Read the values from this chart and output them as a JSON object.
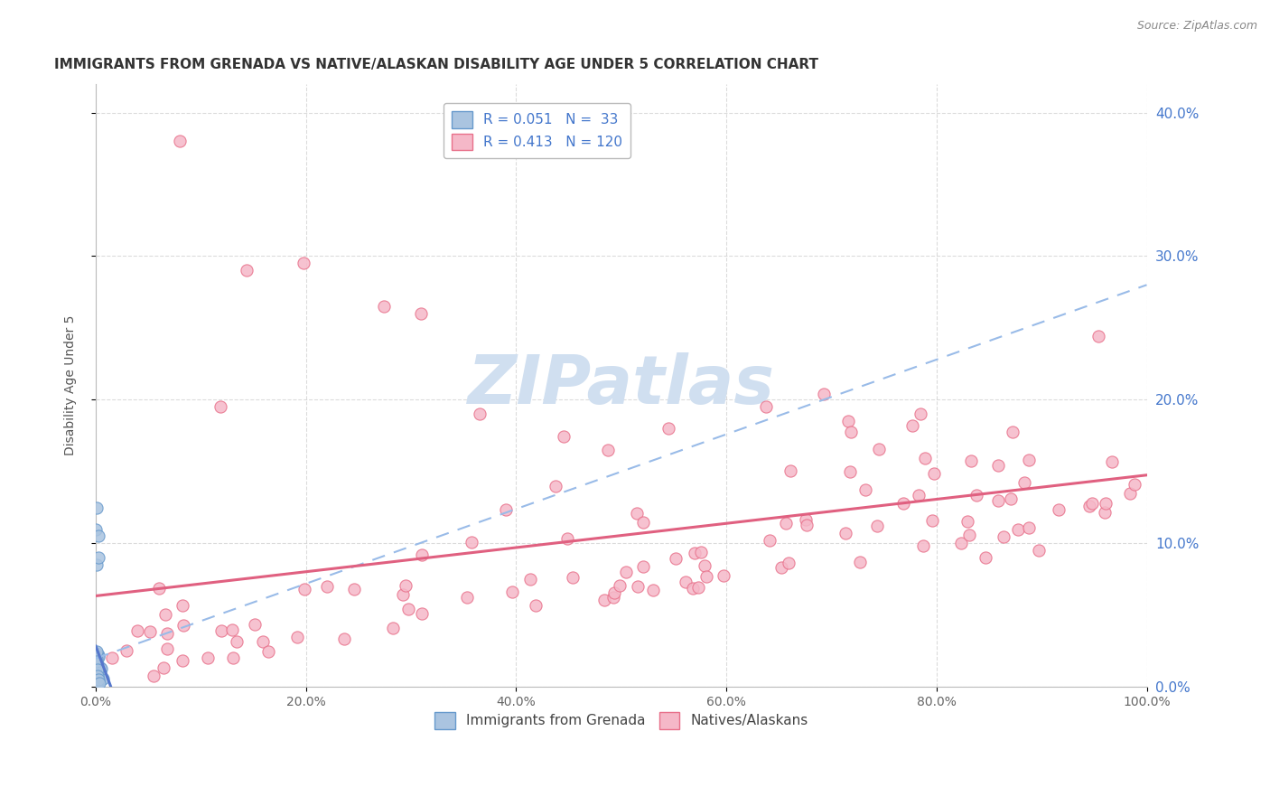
{
  "title": "IMMIGRANTS FROM GRENADA VS NATIVE/ALASKAN DISABILITY AGE UNDER 5 CORRELATION CHART",
  "source": "Source: ZipAtlas.com",
  "ylabel": "Disability Age Under 5",
  "xlim": [
    0,
    100
  ],
  "ylim": [
    0,
    42
  ],
  "xtick_labels": [
    "0.0%",
    "20.0%",
    "40.0%",
    "60.0%",
    "80.0%",
    "100.0%"
  ],
  "xtick_values": [
    0,
    20,
    40,
    60,
    80,
    100
  ],
  "ytick_labels": [
    "0.0%",
    "10.0%",
    "20.0%",
    "30.0%",
    "40.0%"
  ],
  "ytick_values": [
    0,
    10,
    20,
    30,
    40
  ],
  "legend_labels": [
    "Immigrants from Grenada",
    "Natives/Alaskans"
  ],
  "R_grenada": 0.051,
  "N_grenada": 33,
  "R_native": 0.413,
  "N_native": 120,
  "color_grenada_fill": "#aac4e0",
  "color_grenada_edge": "#6699cc",
  "color_native_fill": "#f5b8c8",
  "color_native_edge": "#e8708a",
  "color_grenada_line": "#5577cc",
  "color_native_line": "#e06080",
  "color_grenada_dash": "#99bbe8",
  "color_text_blue": "#4477cc",
  "background_color": "#ffffff",
  "grid_color": "#cccccc",
  "watermark_color": "#d0dff0",
  "title_color": "#333333",
  "source_color": "#888888",
  "axis_label_color": "#555555",
  "tick_label_color": "#666666",
  "right_tick_color": "#4477cc"
}
